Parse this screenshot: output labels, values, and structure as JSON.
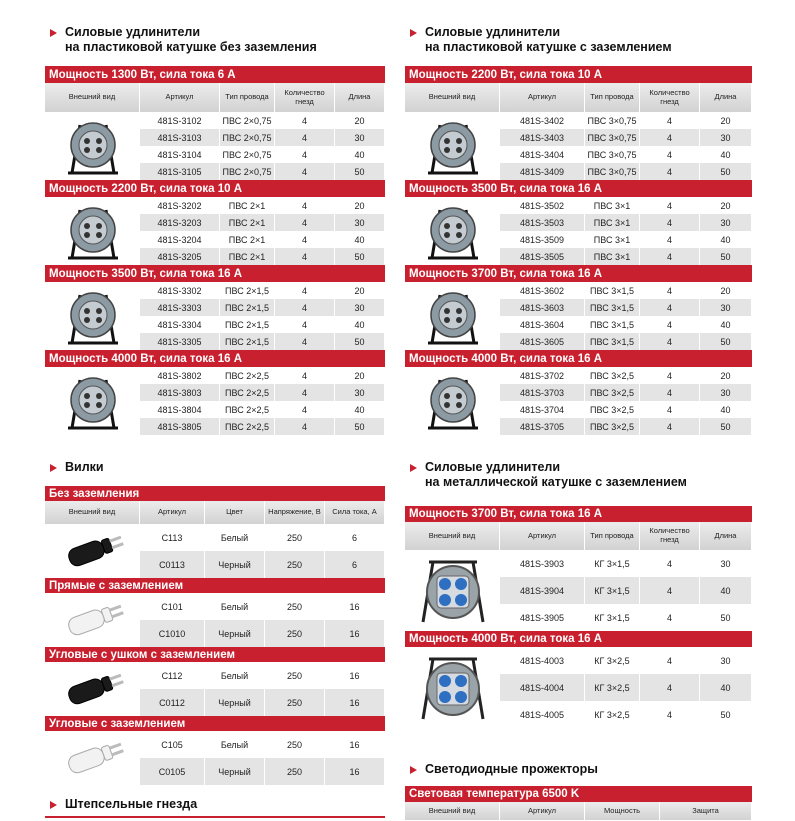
{
  "sections": [
    {
      "title": [
        "Силовые удлинители",
        "на пластиковой катушке без заземления"
      ],
      "columns": [
        "Внешний вид",
        "Артикул",
        "Тип провода",
        "Количество гнезд",
        "Длина"
      ],
      "groups": [
        {
          "name": "Мощность 1300 Вт, сила тока 6 А",
          "rows": [
            [
              "481S-3102",
              "ПВС 2×0,75",
              4,
              20
            ],
            [
              "481S-3103",
              "ПВС 2×0,75",
              4,
              30
            ],
            [
              "481S-3104",
              "ПВС 2×0,75",
              4,
              40
            ],
            [
              "481S-3105",
              "ПВС 2×0,75",
              4,
              50
            ]
          ]
        },
        {
          "name": "Мощность 2200 Вт, сила тока 10 А",
          "rows": [
            [
              "481S-3202",
              "ПВС 2×1",
              4,
              20
            ],
            [
              "481S-3203",
              "ПВС 2×1",
              4,
              30
            ],
            [
              "481S-3204",
              "ПВС 2×1",
              4,
              40
            ],
            [
              "481S-3205",
              "ПВС 2×1",
              4,
              50
            ]
          ]
        },
        {
          "name": "Мощность 3500 Вт, сила тока 16 А",
          "rows": [
            [
              "481S-3302",
              "ПВС 2×1,5",
              4,
              20
            ],
            [
              "481S-3303",
              "ПВС 2×1,5",
              4,
              30
            ],
            [
              "481S-3304",
              "ПВС 2×1,5",
              4,
              40
            ],
            [
              "481S-3305",
              "ПВС 2×1,5",
              4,
              50
            ]
          ]
        },
        {
          "name": "Мощность 4000 Вт, сила тока 16 А",
          "rows": [
            [
              "481S-3802",
              "ПВС 2×2,5",
              4,
              20
            ],
            [
              "481S-3803",
              "ПВС 2×2,5",
              4,
              30
            ],
            [
              "481S-3804",
              "ПВС 2×2,5",
              4,
              40
            ],
            [
              "481S-3805",
              "ПВС 2×2,5",
              4,
              50
            ]
          ]
        }
      ]
    },
    {
      "title": [
        "Силовые удлинители",
        "на пластиковой катушке с заземлением"
      ],
      "columns": [
        "Внешний вид",
        "Артикул",
        "Тип провода",
        "Количество гнезд",
        "Длина"
      ],
      "groups": [
        {
          "name": "Мощность 2200 Вт, сила тока 10 А",
          "rows": [
            [
              "481S-3402",
              "ПВС 3×0,75",
              4,
              20
            ],
            [
              "481S-3403",
              "ПВС 3×0,75",
              4,
              30
            ],
            [
              "481S-3404",
              "ПВС 3×0,75",
              4,
              40
            ],
            [
              "481S-3409",
              "ПВС 3×0,75",
              4,
              50
            ]
          ]
        },
        {
          "name": "Мощность 3500 Вт, сила тока 16 А",
          "rows": [
            [
              "481S-3502",
              "ПВС 3×1",
              4,
              20
            ],
            [
              "481S-3503",
              "ПВС 3×1",
              4,
              30
            ],
            [
              "481S-3509",
              "ПВС 3×1",
              4,
              40
            ],
            [
              "481S-3505",
              "ПВС 3×1",
              4,
              50
            ]
          ]
        },
        {
          "name": "Мощность 3700 Вт, сила тока 16 А",
          "rows": [
            [
              "481S-3602",
              "ПВС 3×1,5",
              4,
              20
            ],
            [
              "481S-3603",
              "ПВС 3×1,5",
              4,
              30
            ],
            [
              "481S-3604",
              "ПВС 3×1,5",
              4,
              40
            ],
            [
              "481S-3605",
              "ПВС 3×1,5",
              4,
              50
            ]
          ]
        },
        {
          "name": "Мощность 4000 Вт, сила тока 16 А",
          "rows": [
            [
              "481S-3702",
              "ПВС 3×2,5",
              4,
              20
            ],
            [
              "481S-3703",
              "ПВС 3×2,5",
              4,
              30
            ],
            [
              "481S-3704",
              "ПВС 3×2,5",
              4,
              40
            ],
            [
              "481S-3705",
              "ПВС 3×2,5",
              4,
              50
            ]
          ]
        }
      ]
    },
    {
      "title": [
        "Вилки"
      ],
      "columns": [
        "Внешний вид",
        "Артикул",
        "Цвет",
        "Напряжение, В",
        "Сила тока, А"
      ],
      "groups": [
        {
          "name": "Без заземления",
          "rows": [
            [
              "С113",
              "Белый",
              250,
              6
            ],
            [
              "С0113",
              "Черный",
              250,
              6
            ]
          ]
        },
        {
          "name": "Прямые с заземлением",
          "rows": [
            [
              "С101",
              "Белый",
              250,
              16
            ],
            [
              "С1010",
              "Черный",
              250,
              16
            ]
          ]
        },
        {
          "name": "Угловые с ушком с заземлением",
          "rows": [
            [
              "С112",
              "Белый",
              250,
              16
            ],
            [
              "С0112",
              "Черный",
              250,
              16
            ]
          ]
        },
        {
          "name": "Угловые с заземлением",
          "rows": [
            [
              "С105",
              "Белый",
              250,
              16
            ],
            [
              "С0105",
              "Черный",
              250,
              16
            ]
          ]
        }
      ]
    },
    {
      "title": [
        "Силовые удлинители",
        "на металлической катушке с заземлением"
      ],
      "columns": [
        "Внешний вид",
        "Артикул",
        "Тип провода",
        "Количество гнезд",
        "Длина"
      ],
      "groups": [
        {
          "name": "Мощность 3700 Вт, сила тока 16 А",
          "rows": [
            [
              "481S-3903",
              "КГ 3×1,5",
              4,
              30
            ],
            [
              "481S-3904",
              "КГ 3×1,5",
              4,
              40
            ],
            [
              "481S-3905",
              "КГ 3×1,5",
              4,
              50
            ]
          ]
        },
        {
          "name": "Мощность 4000 Вт, сила тока 16 А",
          "rows": [
            [
              "481S-4003",
              "КГ 3×2,5",
              4,
              30
            ],
            [
              "481S-4004",
              "КГ 3×2,5",
              4,
              40
            ],
            [
              "481S-4005",
              "КГ 3×2,5",
              4,
              50
            ]
          ]
        }
      ]
    },
    {
      "title": [
        "Штепсельные гнезда"
      ]
    },
    {
      "title": [
        "Светодиодные прожекторы"
      ],
      "columns": [
        "Внешний вид",
        "Артикул",
        "Мощность",
        "Защита"
      ],
      "groups": [
        {
          "name": "Световая температура 6500 K"
        }
      ]
    }
  ]
}
